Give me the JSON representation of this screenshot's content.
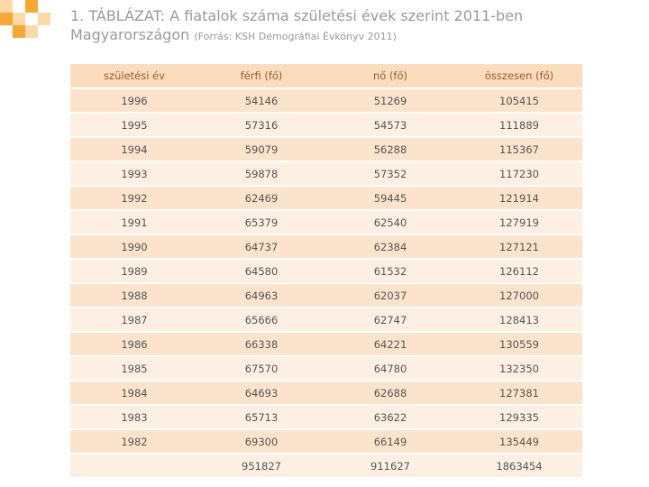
{
  "title": {
    "label": "1. TÁBLÁZAT:",
    "text": "A fiatalok száma születési évek szerint 2011-ben",
    "line2": "Magyarországon",
    "source": "(Forrás: KSH Demográfiai Évkönyv 2011)"
  },
  "colors": {
    "header_bg": "#fbdcbc",
    "row_dark": "#fce3cc",
    "row_light": "#fdf0e2",
    "logo_orange": "#f7a833",
    "logo_light": "#fcd9a8"
  },
  "table": {
    "headers": [
      "születési év",
      "férfi (fő)",
      "nő (fő)",
      "összesen (fő)"
    ],
    "rows": [
      [
        "1996",
        "54146",
        "51269",
        "105415"
      ],
      [
        "1995",
        "57316",
        "54573",
        "111889"
      ],
      [
        "1994",
        "59079",
        "56288",
        "115367"
      ],
      [
        "1993",
        "59878",
        "57352",
        "117230"
      ],
      [
        "1992",
        "62469",
        "59445",
        "121914"
      ],
      [
        "1991",
        "65379",
        "62540",
        "127919"
      ],
      [
        "1990",
        "64737",
        "62384",
        "127121"
      ],
      [
        "1989",
        "64580",
        "61532",
        "126112"
      ],
      [
        "1988",
        "64963",
        "62037",
        "127000"
      ],
      [
        "1987",
        "65666",
        "62747",
        "128413"
      ],
      [
        "1986",
        "66338",
        "64221",
        "130559"
      ],
      [
        "1985",
        "67570",
        "64780",
        "132350"
      ],
      [
        "1984",
        "64693",
        "62688",
        "127381"
      ],
      [
        "1983",
        "65713",
        "63622",
        "129335"
      ],
      [
        "1982",
        "69300",
        "66149",
        "135449"
      ]
    ],
    "total": [
      "",
      "951827",
      "911627",
      "1863454"
    ]
  }
}
